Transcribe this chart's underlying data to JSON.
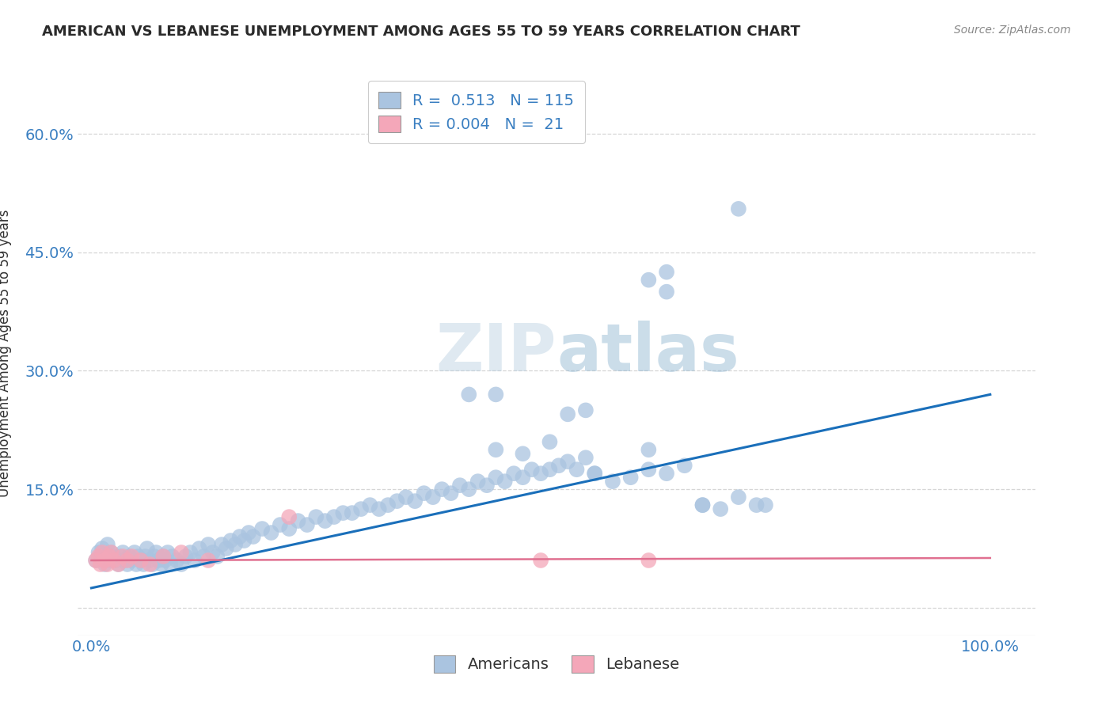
{
  "title": "AMERICAN VS LEBANESE UNEMPLOYMENT AMONG AGES 55 TO 59 YEARS CORRELATION CHART",
  "source": "Source: ZipAtlas.com",
  "ylabel": "Unemployment Among Ages 55 to 59 years",
  "americans_R": "0.513",
  "americans_N": "115",
  "lebanese_R": "0.004",
  "lebanese_N": "21",
  "american_color": "#aac4e0",
  "lebanese_color": "#f4a7b9",
  "american_line_color": "#1a6fba",
  "lebanese_line_color": "#e07090",
  "watermark": "ZIPatlas",
  "legend_label_americans": "Americans",
  "legend_label_lebanese": "Lebanese",
  "am_x": [
    0.005,
    0.008,
    0.01,
    0.012,
    0.015,
    0.018,
    0.02,
    0.022,
    0.025,
    0.028,
    0.03,
    0.032,
    0.035,
    0.038,
    0.04,
    0.042,
    0.045,
    0.048,
    0.05,
    0.052,
    0.055,
    0.058,
    0.06,
    0.062,
    0.065,
    0.068,
    0.07,
    0.072,
    0.075,
    0.078,
    0.08,
    0.082,
    0.085,
    0.088,
    0.09,
    0.095,
    0.1,
    0.105,
    0.11,
    0.115,
    0.12,
    0.125,
    0.13,
    0.135,
    0.14,
    0.145,
    0.15,
    0.155,
    0.16,
    0.165,
    0.17,
    0.175,
    0.18,
    0.19,
    0.2,
    0.21,
    0.22,
    0.23,
    0.24,
    0.25,
    0.26,
    0.27,
    0.28,
    0.29,
    0.3,
    0.31,
    0.32,
    0.33,
    0.34,
    0.35,
    0.36,
    0.37,
    0.38,
    0.39,
    0.4,
    0.41,
    0.42,
    0.43,
    0.44,
    0.45,
    0.46,
    0.47,
    0.48,
    0.49,
    0.5,
    0.51,
    0.52,
    0.53,
    0.54,
    0.55,
    0.56,
    0.58,
    0.6,
    0.62,
    0.64,
    0.66,
    0.68,
    0.7,
    0.72,
    0.74,
    0.42,
    0.45,
    0.55,
    0.62,
    0.68,
    0.62,
    0.64,
    0.64,
    0.72,
    0.75,
    0.45,
    0.48,
    0.51,
    0.53,
    0.56
  ],
  "am_y": [
    0.06,
    0.07,
    0.065,
    0.075,
    0.055,
    0.08,
    0.06,
    0.07,
    0.065,
    0.06,
    0.055,
    0.065,
    0.07,
    0.06,
    0.055,
    0.065,
    0.06,
    0.07,
    0.055,
    0.065,
    0.06,
    0.055,
    0.065,
    0.075,
    0.06,
    0.055,
    0.065,
    0.07,
    0.06,
    0.055,
    0.065,
    0.06,
    0.07,
    0.055,
    0.065,
    0.06,
    0.055,
    0.065,
    0.07,
    0.06,
    0.075,
    0.065,
    0.08,
    0.07,
    0.065,
    0.08,
    0.075,
    0.085,
    0.08,
    0.09,
    0.085,
    0.095,
    0.09,
    0.1,
    0.095,
    0.105,
    0.1,
    0.11,
    0.105,
    0.115,
    0.11,
    0.115,
    0.12,
    0.12,
    0.125,
    0.13,
    0.125,
    0.13,
    0.135,
    0.14,
    0.135,
    0.145,
    0.14,
    0.15,
    0.145,
    0.155,
    0.15,
    0.16,
    0.155,
    0.165,
    0.16,
    0.17,
    0.165,
    0.175,
    0.17,
    0.175,
    0.18,
    0.185,
    0.175,
    0.19,
    0.17,
    0.16,
    0.165,
    0.175,
    0.17,
    0.18,
    0.13,
    0.125,
    0.14,
    0.13,
    0.27,
    0.2,
    0.25,
    0.2,
    0.13,
    0.415,
    0.425,
    0.4,
    0.505,
    0.13,
    0.27,
    0.195,
    0.21,
    0.245,
    0.17
  ],
  "leb_x": [
    0.005,
    0.008,
    0.01,
    0.012,
    0.015,
    0.018,
    0.02,
    0.022,
    0.025,
    0.03,
    0.035,
    0.04,
    0.045,
    0.055,
    0.065,
    0.08,
    0.1,
    0.13,
    0.22,
    0.5,
    0.62
  ],
  "leb_y": [
    0.06,
    0.065,
    0.055,
    0.07,
    0.06,
    0.055,
    0.065,
    0.07,
    0.06,
    0.055,
    0.065,
    0.06,
    0.065,
    0.06,
    0.055,
    0.065,
    0.07,
    0.06,
    0.115,
    0.06,
    0.06
  ],
  "am_line_x": [
    0.0,
    1.0
  ],
  "am_line_y": [
    0.025,
    0.27
  ],
  "leb_line_x": [
    0.0,
    1.0
  ],
  "leb_line_y": [
    0.06,
    0.063
  ],
  "xlim": [
    -0.015,
    1.05
  ],
  "ylim": [
    -0.035,
    0.68
  ],
  "xtick_pos": [
    0.0,
    0.25,
    0.5,
    0.75,
    1.0
  ],
  "xtick_labels": [
    "0.0%",
    "",
    "",
    "",
    "100.0%"
  ],
  "ytick_pos": [
    0.0,
    0.15,
    0.3,
    0.45,
    0.6
  ],
  "ytick_labels": [
    "",
    "15.0%",
    "30.0%",
    "45.0%",
    "60.0%"
  ],
  "tick_color": "#3a7fc1",
  "grid_color": "#cccccc",
  "title_color": "#2a2a2a",
  "ylabel_color": "#333333",
  "source_color": "#888888"
}
